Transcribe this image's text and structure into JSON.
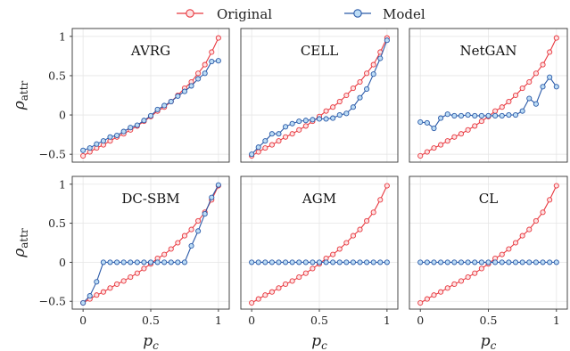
{
  "legend": {
    "items": [
      {
        "label": "Original",
        "color": "#e8373e",
        "fill": "#fde2e3"
      },
      {
        "label": "Model",
        "color": "#2b5aa8",
        "fill": "#bcdcf5"
      }
    ]
  },
  "axes": {
    "ylabel": "ρattr",
    "xlabel": "pc",
    "yticks": [
      "1",
      "0.5",
      "0",
      "−0.5"
    ],
    "xticks": [
      "0",
      "0.5",
      "1"
    ]
  },
  "chart_data": [
    {
      "type": "line",
      "title": "AVRG",
      "x": [
        0,
        0.05,
        0.1,
        0.15,
        0.2,
        0.25,
        0.3,
        0.35,
        0.4,
        0.45,
        0.5,
        0.55,
        0.6,
        0.65,
        0.7,
        0.75,
        0.8,
        0.85,
        0.9,
        0.95,
        1
      ],
      "series": [
        {
          "name": "Original",
          "values": [
            -0.52,
            -0.47,
            -0.42,
            -0.38,
            -0.33,
            -0.28,
            -0.24,
            -0.19,
            -0.14,
            -0.08,
            -0.02,
            0.05,
            0.1,
            0.17,
            0.25,
            0.34,
            0.42,
            0.53,
            0.64,
            0.8,
            0.98
          ]
        },
        {
          "name": "Model",
          "values": [
            -0.45,
            -0.42,
            -0.37,
            -0.33,
            -0.28,
            -0.26,
            -0.21,
            -0.16,
            -0.13,
            -0.07,
            -0.01,
            0.07,
            0.12,
            0.17,
            0.24,
            0.3,
            0.37,
            0.46,
            0.53,
            0.68,
            0.69
          ]
        }
      ],
      "ylim": [
        -0.6,
        1.1
      ],
      "xlim": [
        -0.08,
        1.08
      ]
    },
    {
      "type": "line",
      "title": "CELL",
      "x": [
        0,
        0.05,
        0.1,
        0.15,
        0.2,
        0.25,
        0.3,
        0.35,
        0.4,
        0.45,
        0.5,
        0.55,
        0.6,
        0.65,
        0.7,
        0.75,
        0.8,
        0.85,
        0.9,
        0.95,
        1
      ],
      "series": [
        {
          "name": "Original",
          "values": [
            -0.52,
            -0.47,
            -0.42,
            -0.38,
            -0.33,
            -0.28,
            -0.24,
            -0.19,
            -0.14,
            -0.08,
            -0.02,
            0.05,
            0.1,
            0.17,
            0.25,
            0.34,
            0.42,
            0.53,
            0.64,
            0.8,
            0.98
          ]
        },
        {
          "name": "Model",
          "values": [
            -0.5,
            -0.41,
            -0.33,
            -0.24,
            -0.24,
            -0.15,
            -0.11,
            -0.08,
            -0.07,
            -0.06,
            -0.05,
            -0.05,
            -0.04,
            0.0,
            0.02,
            0.1,
            0.22,
            0.33,
            0.52,
            0.72,
            0.95
          ]
        }
      ],
      "ylim": [
        -0.6,
        1.1
      ],
      "xlim": [
        -0.08,
        1.08
      ]
    },
    {
      "type": "line",
      "title": "NetGAN",
      "x": [
        0,
        0.05,
        0.1,
        0.15,
        0.2,
        0.25,
        0.3,
        0.35,
        0.4,
        0.45,
        0.5,
        0.55,
        0.6,
        0.65,
        0.7,
        0.75,
        0.8,
        0.85,
        0.9,
        0.95,
        1
      ],
      "series": [
        {
          "name": "Original",
          "values": [
            -0.52,
            -0.47,
            -0.42,
            -0.38,
            -0.33,
            -0.28,
            -0.24,
            -0.19,
            -0.14,
            -0.08,
            -0.02,
            0.05,
            0.1,
            0.17,
            0.25,
            0.34,
            0.42,
            0.53,
            0.64,
            0.8,
            0.98
          ]
        },
        {
          "name": "Model",
          "values": [
            -0.09,
            -0.1,
            -0.17,
            -0.04,
            0.01,
            -0.01,
            -0.01,
            0.0,
            -0.01,
            -0.01,
            -0.01,
            -0.01,
            -0.01,
            0.0,
            0.0,
            0.05,
            0.21,
            0.14,
            0.36,
            0.48,
            0.36
          ]
        }
      ],
      "ylim": [
        -0.6,
        1.1
      ],
      "xlim": [
        -0.08,
        1.08
      ]
    },
    {
      "type": "line",
      "title": "DC-SBM",
      "x": [
        0,
        0.05,
        0.1,
        0.15,
        0.2,
        0.25,
        0.3,
        0.35,
        0.4,
        0.45,
        0.5,
        0.55,
        0.6,
        0.65,
        0.7,
        0.75,
        0.8,
        0.85,
        0.9,
        0.95,
        1
      ],
      "series": [
        {
          "name": "Original",
          "values": [
            -0.52,
            -0.47,
            -0.42,
            -0.38,
            -0.33,
            -0.28,
            -0.24,
            -0.19,
            -0.14,
            -0.08,
            -0.02,
            0.05,
            0.1,
            0.17,
            0.25,
            0.34,
            0.42,
            0.53,
            0.64,
            0.8,
            0.98
          ]
        },
        {
          "name": "Model",
          "values": [
            -0.52,
            -0.43,
            -0.25,
            0.0,
            0.0,
            0.0,
            0.0,
            0.0,
            0.0,
            0.0,
            0.0,
            0.0,
            0.0,
            0.0,
            0.0,
            0.0,
            0.21,
            0.4,
            0.62,
            0.83,
            0.99
          ]
        }
      ],
      "ylim": [
        -0.6,
        1.1
      ],
      "xlim": [
        -0.08,
        1.08
      ]
    },
    {
      "type": "line",
      "title": "AGM",
      "x": [
        0,
        0.05,
        0.1,
        0.15,
        0.2,
        0.25,
        0.3,
        0.35,
        0.4,
        0.45,
        0.5,
        0.55,
        0.6,
        0.65,
        0.7,
        0.75,
        0.8,
        0.85,
        0.9,
        0.95,
        1
      ],
      "series": [
        {
          "name": "Original",
          "values": [
            -0.52,
            -0.47,
            -0.42,
            -0.38,
            -0.33,
            -0.28,
            -0.24,
            -0.19,
            -0.14,
            -0.08,
            -0.02,
            0.05,
            0.1,
            0.17,
            0.25,
            0.34,
            0.42,
            0.53,
            0.64,
            0.8,
            0.98
          ]
        },
        {
          "name": "Model",
          "values": [
            0,
            0,
            0,
            0,
            0,
            0,
            0,
            0,
            0,
            0,
            0,
            0,
            0,
            0,
            0,
            0,
            0,
            0,
            0,
            0,
            0
          ]
        }
      ],
      "ylim": [
        -0.6,
        1.1
      ],
      "xlim": [
        -0.08,
        1.08
      ]
    },
    {
      "type": "line",
      "title": "CL",
      "x": [
        0,
        0.05,
        0.1,
        0.15,
        0.2,
        0.25,
        0.3,
        0.35,
        0.4,
        0.45,
        0.5,
        0.55,
        0.6,
        0.65,
        0.7,
        0.75,
        0.8,
        0.85,
        0.9,
        0.95,
        1
      ],
      "series": [
        {
          "name": "Original",
          "values": [
            -0.52,
            -0.47,
            -0.42,
            -0.38,
            -0.33,
            -0.28,
            -0.24,
            -0.19,
            -0.14,
            -0.08,
            -0.02,
            0.05,
            0.1,
            0.17,
            0.25,
            0.34,
            0.42,
            0.53,
            0.64,
            0.8,
            0.98
          ]
        },
        {
          "name": "Model",
          "values": [
            0,
            0,
            0,
            0,
            0,
            0,
            0,
            0,
            0,
            0,
            0,
            0,
            0,
            0,
            0,
            0,
            0,
            0,
            0,
            0,
            0
          ]
        }
      ],
      "ylim": [
        -0.6,
        1.1
      ],
      "xlim": [
        -0.08,
        1.08
      ]
    }
  ]
}
